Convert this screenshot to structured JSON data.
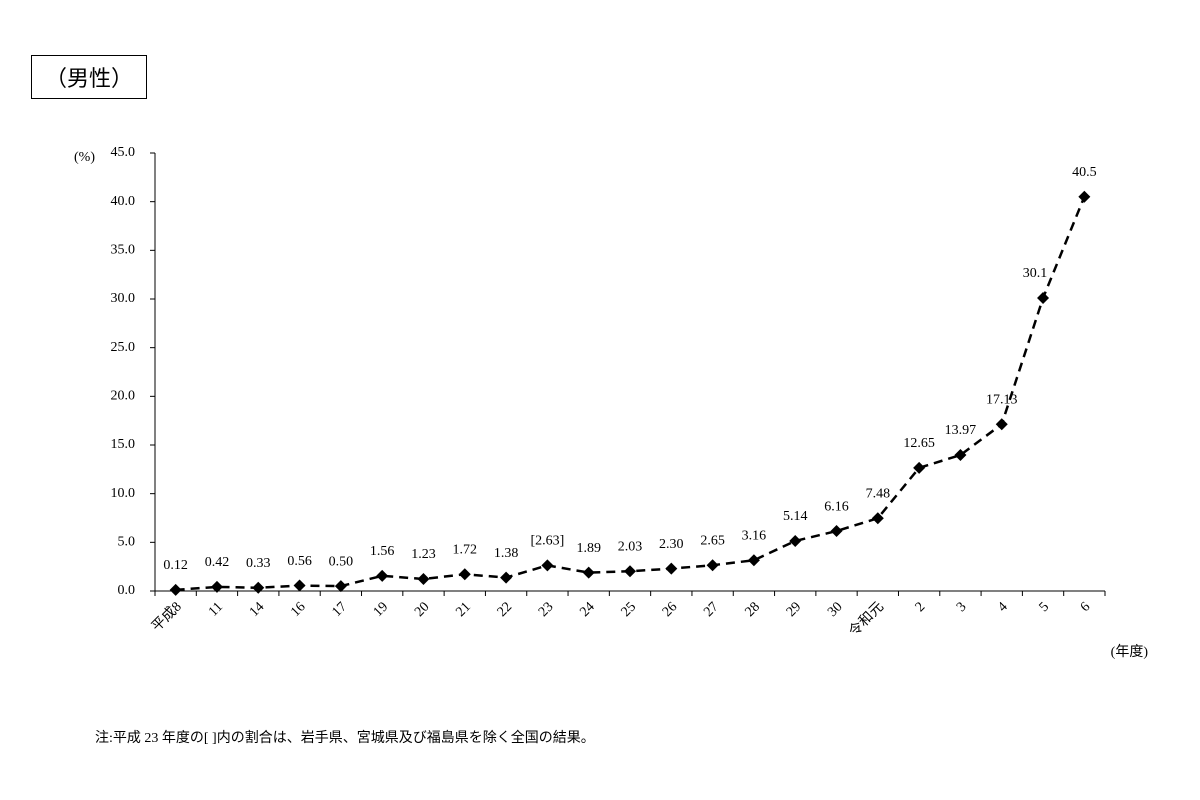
{
  "chart_data": {
    "type": "line",
    "title": "（男性）",
    "y_label": "(%)",
    "x_label": "(年度)",
    "note": "注:平成 23 年度の[ ]内の割合は、岩手県、宮城県及び福島県を除く全国の結果。",
    "categories": [
      "平成8",
      "11",
      "14",
      "16",
      "17",
      "19",
      "20",
      "21",
      "22",
      "23",
      "24",
      "25",
      "26",
      "27",
      "28",
      "29",
      "30",
      "令和元",
      "2",
      "3",
      "4",
      "5",
      "6"
    ],
    "values": [
      0.12,
      0.42,
      0.33,
      0.56,
      0.5,
      1.56,
      1.23,
      1.72,
      1.38,
      2.63,
      1.89,
      2.03,
      2.3,
      2.65,
      3.16,
      5.14,
      6.16,
      7.48,
      12.65,
      13.97,
      17.13,
      30.1,
      40.5
    ],
    "value_labels": [
      "0.12",
      "0.42",
      "0.33",
      "0.56",
      "0.50",
      "1.56",
      "1.23",
      "1.72",
      "1.38",
      "[2.63]",
      "1.89",
      "2.03",
      "2.30",
      "2.65",
      "3.16",
      "5.14",
      "6.16",
      "7.48",
      "12.65",
      "13.97",
      "17.13",
      "30.1",
      "40.5"
    ],
    "color": "#000000",
    "ylim": [
      0,
      45
    ],
    "yticks": [
      {
        "value": 0,
        "label": "0.0"
      },
      {
        "value": 5,
        "label": "5.0"
      },
      {
        "value": 10,
        "label": "10.0"
      },
      {
        "value": 15,
        "label": "15.0"
      },
      {
        "value": 20,
        "label": "20.0"
      },
      {
        "value": 25,
        "label": "25.0"
      },
      {
        "value": 30,
        "label": "30.0"
      },
      {
        "value": 35,
        "label": "35.0"
      },
      {
        "value": 40,
        "label": "40.0"
      },
      {
        "value": 45,
        "label": "45.0"
      }
    ],
    "grid": false
  }
}
